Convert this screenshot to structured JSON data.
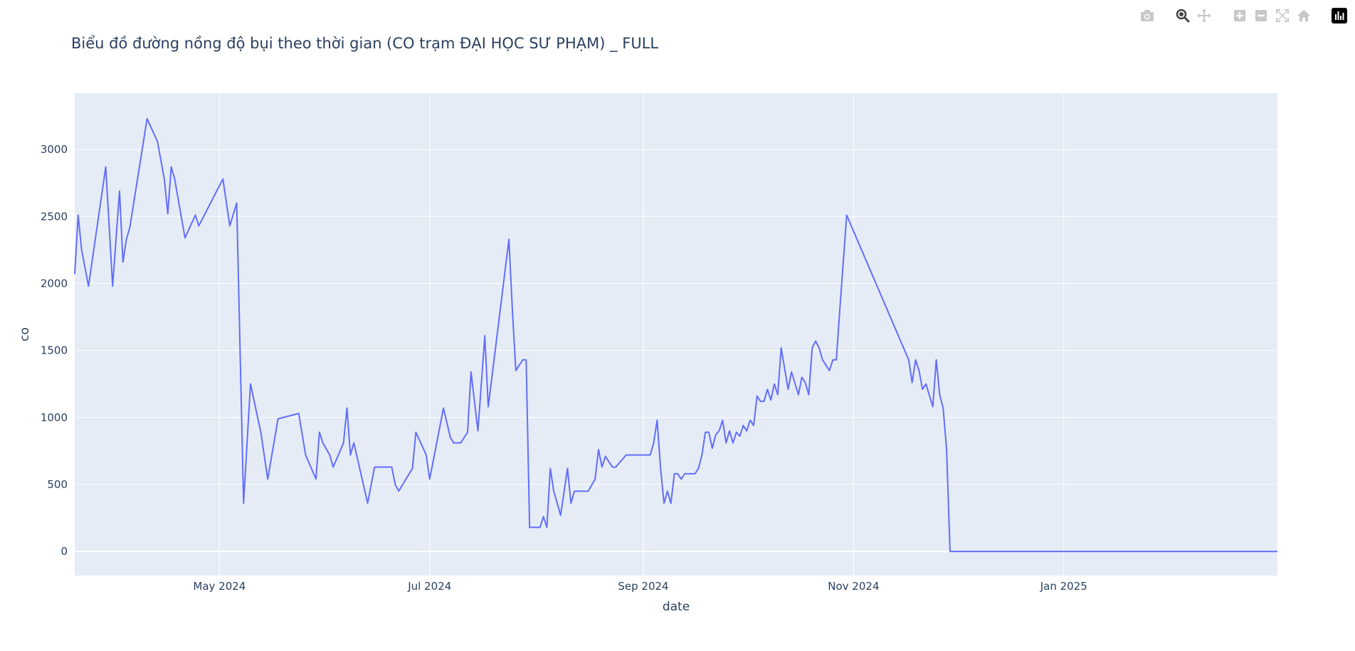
{
  "toolbar": {
    "buttons": [
      {
        "name": "camera-icon",
        "label": "Download plot as a png"
      },
      {
        "name": "zoom-icon",
        "label": "Zoom"
      },
      {
        "name": "pan-icon",
        "label": "Pan"
      },
      {
        "name": "zoom-in-icon",
        "label": "Zoom in"
      },
      {
        "name": "zoom-out-icon",
        "label": "Zoom out"
      },
      {
        "name": "autoscale-icon",
        "label": "Autoscale"
      },
      {
        "name": "home-icon",
        "label": "Reset axes"
      },
      {
        "name": "plotly-logo-icon",
        "label": "Produced with Plotly"
      }
    ],
    "active_color": "#444444",
    "inactive_color": "#c7c7c7"
  },
  "colors": {
    "plot_bg": "#e5ecf6",
    "grid": "#ffffff",
    "line": "#636efa",
    "text": "#2a3f5f"
  },
  "chart_data": {
    "type": "line",
    "title": "Biểu đồ đường nồng độ bụi theo thời gian (CO trạm ĐẠI HỌC SƯ PHẠM) _ FULL",
    "xlabel": "date",
    "ylabel": "co",
    "xlim": [
      "2024-03-20",
      "2025-03-04"
    ],
    "ylim": [
      -180,
      3420
    ],
    "x_ticks": [
      "2024-05-01",
      "2024-07-01",
      "2024-09-01",
      "2024-11-01",
      "2025-01-01"
    ],
    "x_tick_labels": [
      "May 2024",
      "Jul 2024",
      "Sep 2024",
      "Nov 2024",
      "Jan 2025"
    ],
    "y_ticks": [
      0,
      500,
      1000,
      1500,
      2000,
      2500,
      3000
    ],
    "y_tick_labels": [
      "0",
      "500",
      "1000",
      "1500",
      "2000",
      "2500",
      "3000"
    ],
    "grid": true,
    "series": [
      {
        "name": "",
        "color": "#636efa",
        "points": [
          [
            "2024-03-20",
            2070
          ],
          [
            "2024-03-21",
            2510
          ],
          [
            "2024-03-22",
            2250
          ],
          [
            "2024-03-24",
            1980
          ],
          [
            "2024-03-29",
            2870
          ],
          [
            "2024-03-31",
            1980
          ],
          [
            "2024-04-02",
            2690
          ],
          [
            "2024-04-03",
            2160
          ],
          [
            "2024-04-04",
            2330
          ],
          [
            "2024-04-05",
            2420
          ],
          [
            "2024-04-10",
            3230
          ],
          [
            "2024-04-13",
            3060
          ],
          [
            "2024-04-15",
            2780
          ],
          [
            "2024-04-16",
            2520
          ],
          [
            "2024-04-17",
            2870
          ],
          [
            "2024-04-18",
            2780
          ],
          [
            "2024-04-21",
            2340
          ],
          [
            "2024-04-24",
            2510
          ],
          [
            "2024-04-25",
            2430
          ],
          [
            "2024-05-02",
            2780
          ],
          [
            "2024-05-04",
            2430
          ],
          [
            "2024-05-06",
            2600
          ],
          [
            "2024-05-08",
            360
          ],
          [
            "2024-05-10",
            1250
          ],
          [
            "2024-05-13",
            890
          ],
          [
            "2024-05-15",
            540
          ],
          [
            "2024-05-18",
            990
          ],
          [
            "2024-05-24",
            1030
          ],
          [
            "2024-05-26",
            720
          ],
          [
            "2024-05-29",
            540
          ],
          [
            "2024-05-30",
            890
          ],
          [
            "2024-05-31",
            810
          ],
          [
            "2024-06-02",
            720
          ],
          [
            "2024-06-03",
            630
          ],
          [
            "2024-06-06",
            810
          ],
          [
            "2024-06-07",
            1070
          ],
          [
            "2024-06-08",
            720
          ],
          [
            "2024-06-09",
            810
          ],
          [
            "2024-06-13",
            360
          ],
          [
            "2024-06-15",
            630
          ],
          [
            "2024-06-20",
            630
          ],
          [
            "2024-06-21",
            500
          ],
          [
            "2024-06-22",
            450
          ],
          [
            "2024-06-26",
            620
          ],
          [
            "2024-06-27",
            890
          ],
          [
            "2024-06-30",
            720
          ],
          [
            "2024-07-01",
            540
          ],
          [
            "2024-07-05",
            1070
          ],
          [
            "2024-07-07",
            850
          ],
          [
            "2024-07-08",
            810
          ],
          [
            "2024-07-10",
            810
          ],
          [
            "2024-07-12",
            890
          ],
          [
            "2024-07-13",
            1340
          ],
          [
            "2024-07-15",
            900
          ],
          [
            "2024-07-17",
            1610
          ],
          [
            "2024-07-18",
            1080
          ],
          [
            "2024-07-24",
            2330
          ],
          [
            "2024-07-25",
            1800
          ],
          [
            "2024-07-26",
            1350
          ],
          [
            "2024-07-28",
            1430
          ],
          [
            "2024-07-29",
            1430
          ],
          [
            "2024-07-30",
            180
          ],
          [
            "2024-08-02",
            180
          ],
          [
            "2024-08-03",
            260
          ],
          [
            "2024-08-04",
            180
          ],
          [
            "2024-08-05",
            620
          ],
          [
            "2024-08-06",
            450
          ],
          [
            "2024-08-08",
            270
          ],
          [
            "2024-08-10",
            620
          ],
          [
            "2024-08-11",
            360
          ],
          [
            "2024-08-12",
            450
          ],
          [
            "2024-08-16",
            450
          ],
          [
            "2024-08-18",
            540
          ],
          [
            "2024-08-19",
            760
          ],
          [
            "2024-08-20",
            630
          ],
          [
            "2024-08-21",
            710
          ],
          [
            "2024-08-23",
            630
          ],
          [
            "2024-08-24",
            630
          ],
          [
            "2024-08-27",
            720
          ],
          [
            "2024-09-03",
            720
          ],
          [
            "2024-09-04",
            810
          ],
          [
            "2024-09-05",
            980
          ],
          [
            "2024-09-06",
            620
          ],
          [
            "2024-09-07",
            360
          ],
          [
            "2024-09-08",
            450
          ],
          [
            "2024-09-09",
            360
          ],
          [
            "2024-09-10",
            580
          ],
          [
            "2024-09-11",
            580
          ],
          [
            "2024-09-12",
            540
          ],
          [
            "2024-09-13",
            580
          ],
          [
            "2024-09-16",
            580
          ],
          [
            "2024-09-17",
            620
          ],
          [
            "2024-09-18",
            720
          ],
          [
            "2024-09-19",
            890
          ],
          [
            "2024-09-20",
            890
          ],
          [
            "2024-09-21",
            770
          ],
          [
            "2024-09-22",
            870
          ],
          [
            "2024-09-23",
            900
          ],
          [
            "2024-09-24",
            980
          ],
          [
            "2024-09-25",
            810
          ],
          [
            "2024-09-26",
            900
          ],
          [
            "2024-09-27",
            810
          ],
          [
            "2024-09-28",
            890
          ],
          [
            "2024-09-29",
            860
          ],
          [
            "2024-09-30",
            940
          ],
          [
            "2024-10-01",
            900
          ],
          [
            "2024-10-02",
            980
          ],
          [
            "2024-10-03",
            940
          ],
          [
            "2024-10-04",
            1160
          ],
          [
            "2024-10-05",
            1120
          ],
          [
            "2024-10-06",
            1120
          ],
          [
            "2024-10-07",
            1210
          ],
          [
            "2024-10-08",
            1130
          ],
          [
            "2024-10-09",
            1250
          ],
          [
            "2024-10-10",
            1170
          ],
          [
            "2024-10-11",
            1520
          ],
          [
            "2024-10-13",
            1210
          ],
          [
            "2024-10-14",
            1340
          ],
          [
            "2024-10-16",
            1170
          ],
          [
            "2024-10-17",
            1300
          ],
          [
            "2024-10-18",
            1260
          ],
          [
            "2024-10-19",
            1170
          ],
          [
            "2024-10-20",
            1520
          ],
          [
            "2024-10-21",
            1570
          ],
          [
            "2024-10-22",
            1520
          ],
          [
            "2024-10-23",
            1430
          ],
          [
            "2024-10-25",
            1350
          ],
          [
            "2024-10-26",
            1430
          ],
          [
            "2024-10-27",
            1430
          ],
          [
            "2024-10-28",
            1800
          ],
          [
            "2024-10-30",
            2510
          ],
          [
            "2024-11-17",
            1430
          ],
          [
            "2024-11-18",
            1260
          ],
          [
            "2024-11-19",
            1430
          ],
          [
            "2024-11-20",
            1350
          ],
          [
            "2024-11-21",
            1210
          ],
          [
            "2024-11-22",
            1250
          ],
          [
            "2024-11-24",
            1080
          ],
          [
            "2024-11-25",
            1430
          ],
          [
            "2024-11-26",
            1170
          ],
          [
            "2024-11-27",
            1070
          ],
          [
            "2024-11-28",
            760
          ],
          [
            "2024-11-29",
            0
          ],
          [
            "2025-03-04",
            0
          ]
        ]
      }
    ]
  }
}
